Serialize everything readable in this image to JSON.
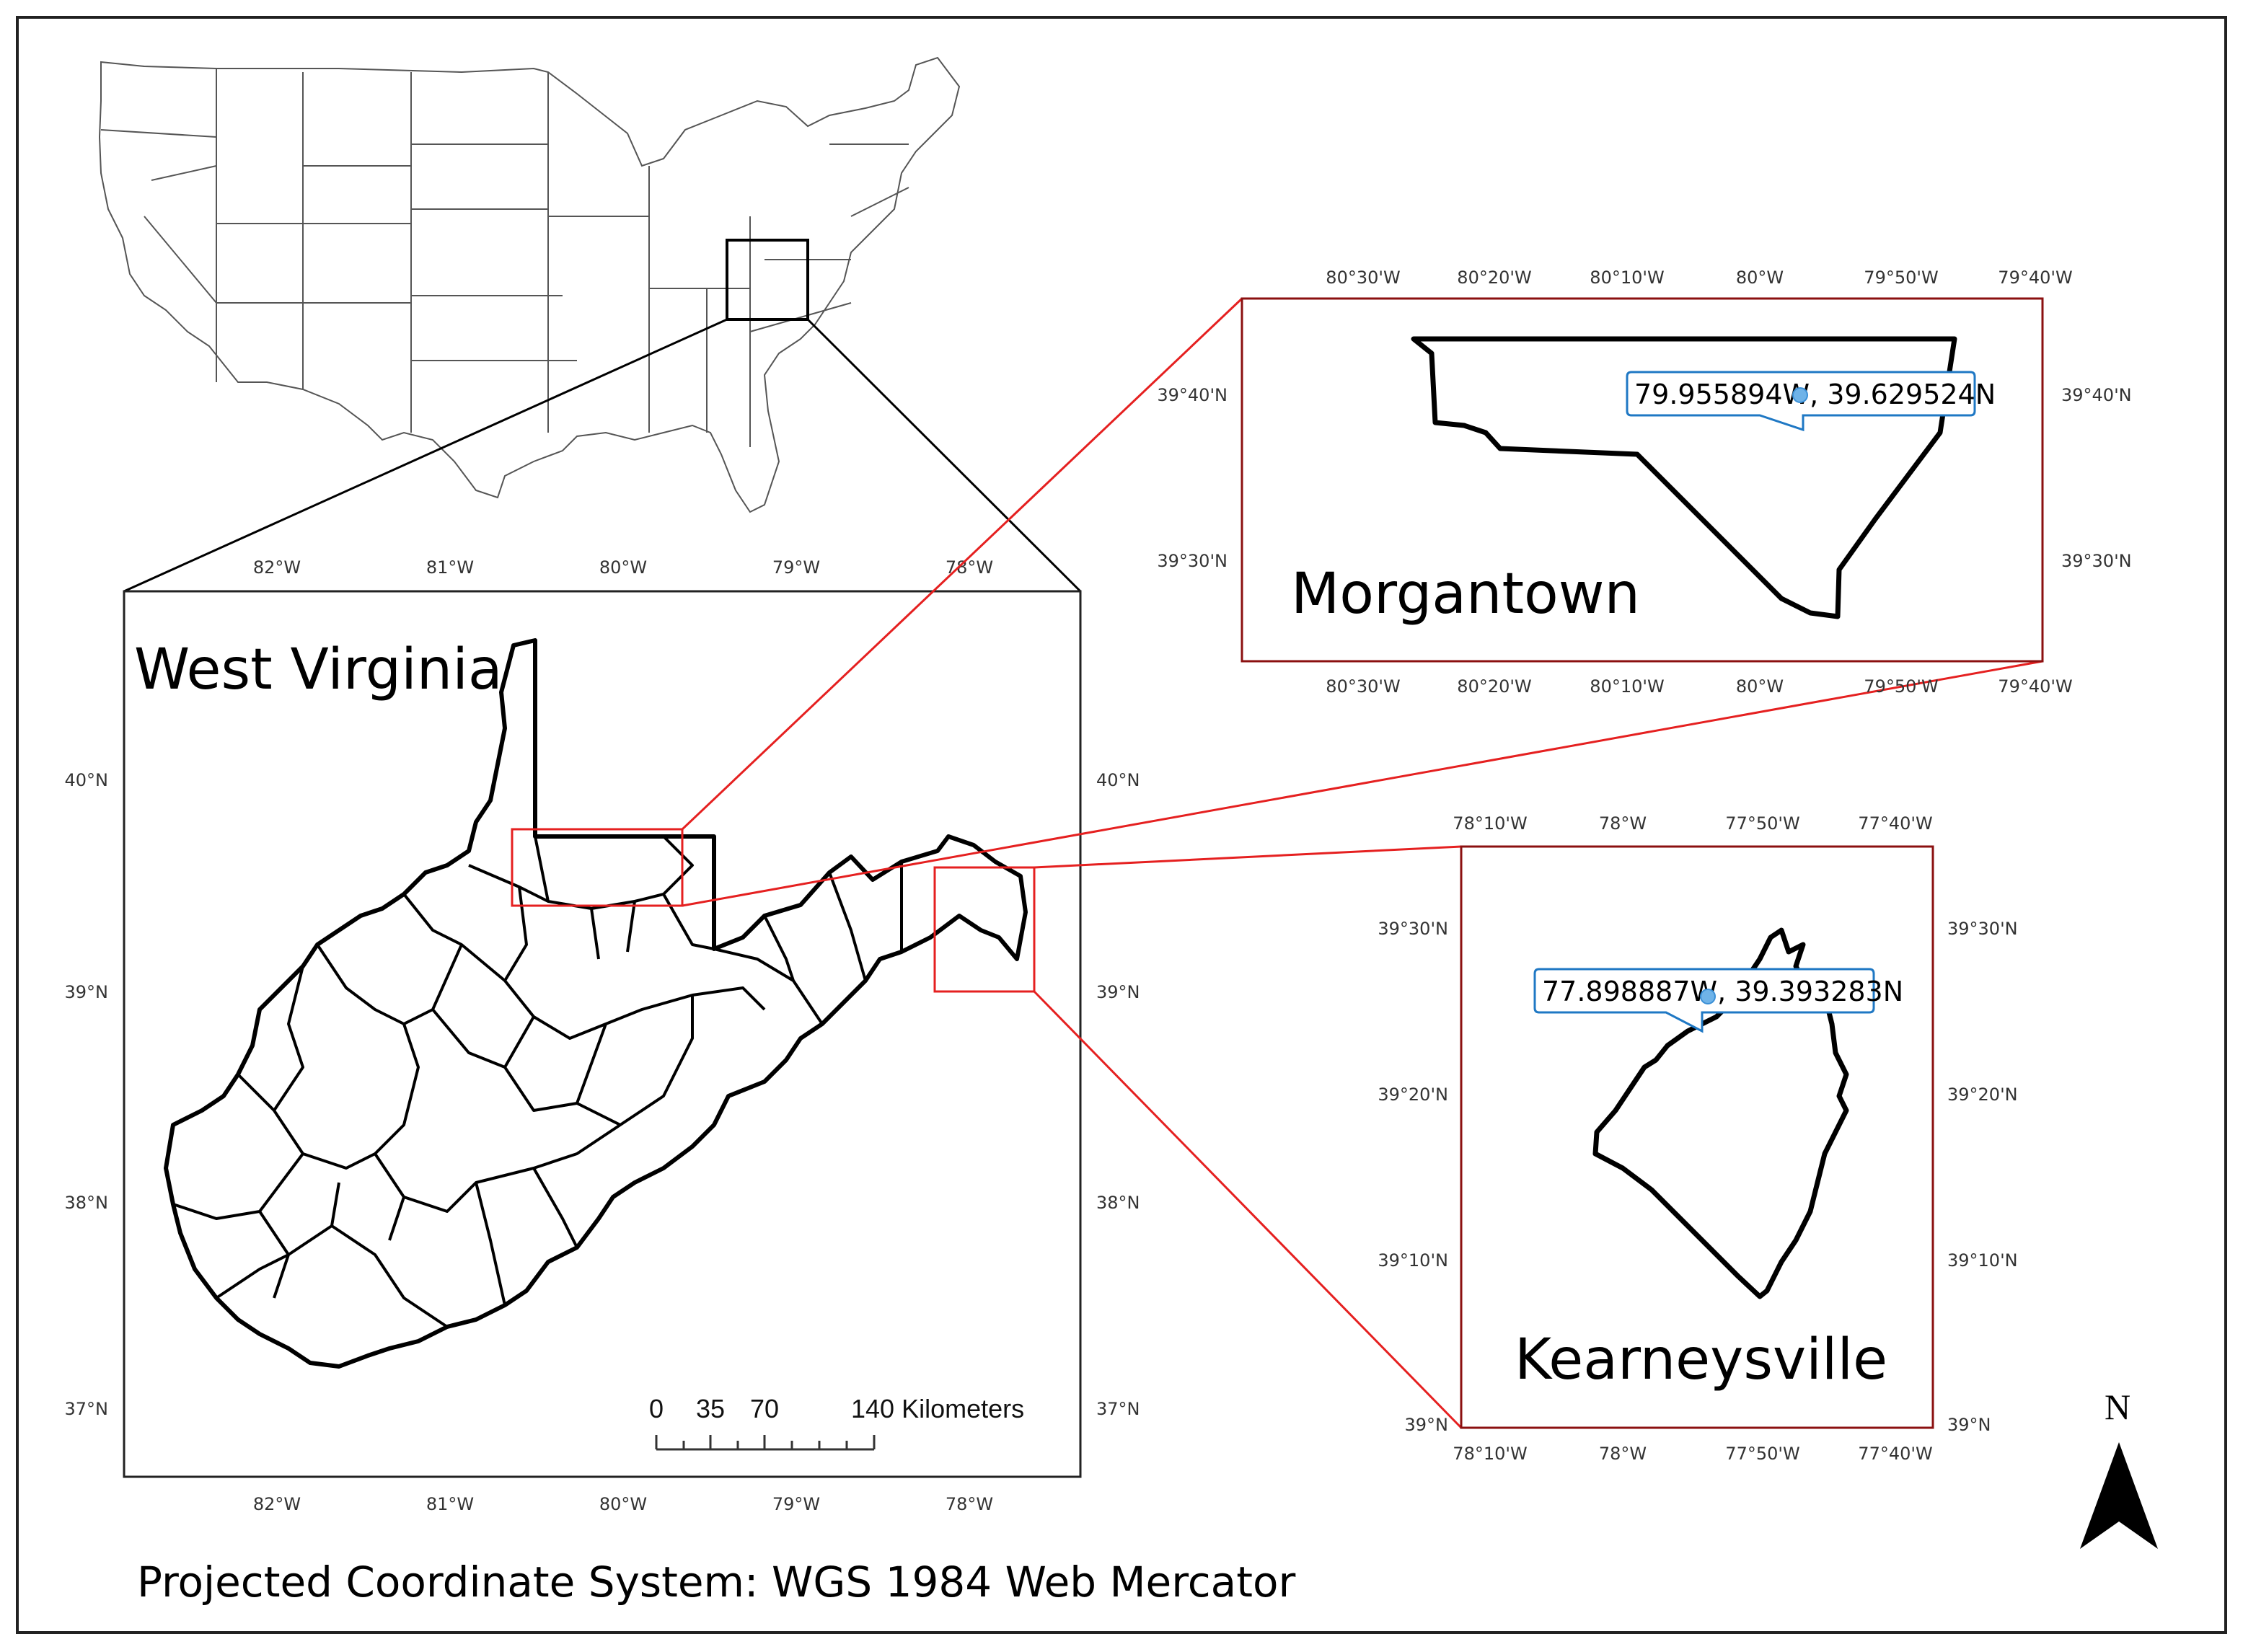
{
  "wv_panel": {
    "title": "West Virginia",
    "lon_ticks": [
      "82°W",
      "81°W",
      "80°W",
      "79°W",
      "78°W"
    ],
    "lat_ticks": [
      "40°N",
      "39°N",
      "38°N",
      "37°N"
    ]
  },
  "morgantown_panel": {
    "title": "Morgantown",
    "lon_ticks": [
      "80°30'W",
      "80°20'W",
      "80°10'W",
      "80°W",
      "79°50'W",
      "79°40'W"
    ],
    "lat_ticks": [
      "39°40'N",
      "39°30'N"
    ],
    "callout": "79.955894W, 39.629524N"
  },
  "kearneysville_panel": {
    "title": "Kearneysville",
    "lon_ticks": [
      "78°10'W",
      "78°W",
      "77°50'W",
      "77°40'W"
    ],
    "lat_ticks": [
      "39°30'N",
      "39°20'N",
      "39°10'N",
      "39°N"
    ],
    "callout": "77.898887W, 39.393283N"
  },
  "scale_bar": {
    "labels": [
      "0",
      "35",
      "70",
      "140 Kilometers"
    ]
  },
  "north_arrow": {
    "label": "N"
  },
  "footer": {
    "text": "Projected Coordinate System: WGS 1984 Web Mercator"
  },
  "colors": {
    "frame": "#222222",
    "extent_box": "#e52020",
    "panel_border": "#8b1010",
    "callout": "#1f78c4",
    "point": "#6fb3e8"
  }
}
